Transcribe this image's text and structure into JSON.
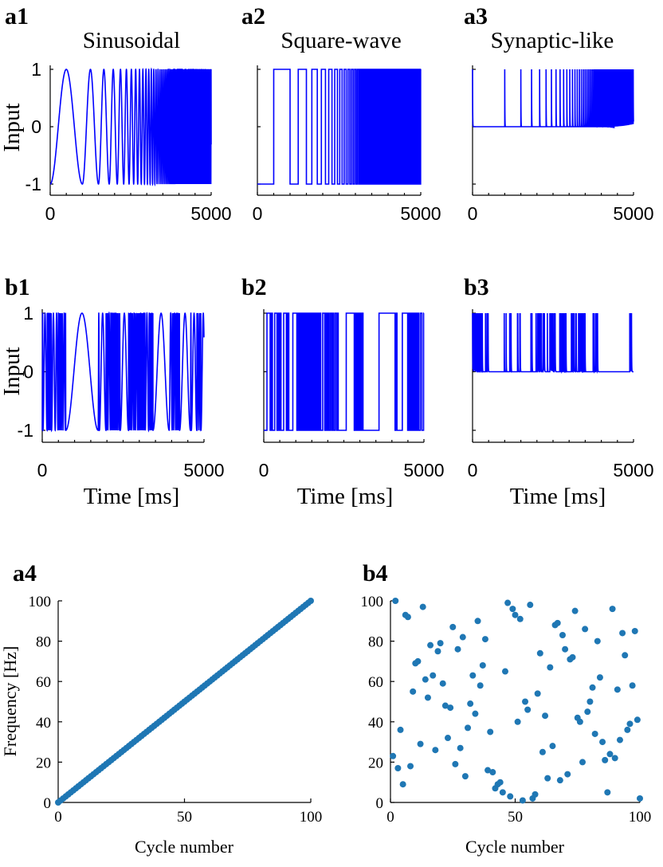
{
  "chart_data": [
    {
      "panel": "a1",
      "type": "line",
      "title": "Sinusoidal",
      "ylabel": "Input",
      "xlabel": "",
      "waveform": "sinusoidal",
      "order": "increasing",
      "xlim": [
        0,
        5000
      ],
      "ylim": [
        -1,
        1
      ],
      "xticks": [
        "0",
        "5000"
      ],
      "yticks": [
        "-1",
        "0",
        "1"
      ],
      "color": "#0000ff"
    },
    {
      "panel": "a2",
      "type": "line",
      "title": "Square-wave",
      "ylabel": "",
      "xlabel": "",
      "waveform": "square",
      "order": "increasing",
      "xlim": [
        0,
        5000
      ],
      "ylim": [
        -1,
        1
      ],
      "xticks": [
        "0",
        "5000"
      ],
      "yticks": [],
      "color": "#0000ff"
    },
    {
      "panel": "a3",
      "type": "line",
      "title": "Synaptic-like",
      "ylabel": "",
      "xlabel": "",
      "waveform": "synaptic",
      "order": "increasing",
      "xlim": [
        0,
        5000
      ],
      "ylim": [
        -1,
        1
      ],
      "xticks": [
        "0",
        "5000"
      ],
      "yticks": [],
      "color": "#0000ff"
    },
    {
      "panel": "b1",
      "type": "line",
      "title": "",
      "ylabel": "Input",
      "xlabel": "Time [ms]",
      "waveform": "sinusoidal",
      "order": "random",
      "xlim": [
        0,
        5000
      ],
      "ylim": [
        -1,
        1
      ],
      "xticks": [
        "0",
        "5000"
      ],
      "yticks": [
        "-1",
        "0",
        "1"
      ],
      "color": "#0000ff"
    },
    {
      "panel": "b2",
      "type": "line",
      "title": "",
      "ylabel": "",
      "xlabel": "Time [ms]",
      "waveform": "square",
      "order": "random",
      "xlim": [
        0,
        5000
      ],
      "ylim": [
        -1,
        1
      ],
      "xticks": [
        "0",
        "5000"
      ],
      "yticks": [],
      "color": "#0000ff"
    },
    {
      "panel": "b3",
      "type": "line",
      "title": "",
      "ylabel": "",
      "xlabel": "Time [ms]",
      "waveform": "synaptic",
      "order": "random",
      "xlim": [
        0,
        5000
      ],
      "ylim": [
        -1,
        1
      ],
      "xticks": [
        "0",
        "5000"
      ],
      "yticks": [],
      "color": "#0000ff"
    },
    {
      "panel": "a4",
      "type": "scatter",
      "title": "",
      "xlabel": "Cycle number",
      "ylabel": "Frequency [Hz]",
      "xlim": [
        0,
        100
      ],
      "ylim": [
        0,
        100
      ],
      "xticks": [
        "0",
        "50",
        "100"
      ],
      "yticks": [
        "0",
        "20",
        "40",
        "60",
        "80",
        "100"
      ],
      "color": "#1f77b4",
      "series": [
        {
          "x": [
            0,
            1,
            2,
            3,
            4,
            5,
            6,
            7,
            8,
            9,
            10,
            11,
            12,
            13,
            14,
            15,
            16,
            17,
            18,
            19,
            20,
            21,
            22,
            23,
            24,
            25,
            26,
            27,
            28,
            29,
            30,
            31,
            32,
            33,
            34,
            35,
            36,
            37,
            38,
            39,
            40,
            41,
            42,
            43,
            44,
            45,
            46,
            47,
            48,
            49,
            50,
            51,
            52,
            53,
            54,
            55,
            56,
            57,
            58,
            59,
            60,
            61,
            62,
            63,
            64,
            65,
            66,
            67,
            68,
            69,
            70,
            71,
            72,
            73,
            74,
            75,
            76,
            77,
            78,
            79,
            80,
            81,
            82,
            83,
            84,
            85,
            86,
            87,
            88,
            89,
            90,
            91,
            92,
            93,
            94,
            95,
            96,
            97,
            98,
            99,
            100
          ],
          "y": [
            0,
            1,
            2,
            3,
            4,
            5,
            6,
            7,
            8,
            9,
            10,
            11,
            12,
            13,
            14,
            15,
            16,
            17,
            18,
            19,
            20,
            21,
            22,
            23,
            24,
            25,
            26,
            27,
            28,
            29,
            30,
            31,
            32,
            33,
            34,
            35,
            36,
            37,
            38,
            39,
            40,
            41,
            42,
            43,
            44,
            45,
            46,
            47,
            48,
            49,
            50,
            51,
            52,
            53,
            54,
            55,
            56,
            57,
            58,
            59,
            60,
            61,
            62,
            63,
            64,
            65,
            66,
            67,
            68,
            69,
            70,
            71,
            72,
            73,
            74,
            75,
            76,
            77,
            78,
            79,
            80,
            81,
            82,
            83,
            84,
            85,
            86,
            87,
            88,
            89,
            90,
            91,
            92,
            93,
            94,
            95,
            96,
            97,
            98,
            99,
            100
          ]
        }
      ]
    },
    {
      "panel": "b4",
      "type": "scatter",
      "title": "",
      "xlabel": "Cycle number",
      "ylabel": "",
      "xlim": [
        0,
        100
      ],
      "ylim": [
        0,
        100
      ],
      "xticks": [
        "0",
        "50",
        "100"
      ],
      "yticks": [
        "0",
        "20",
        "40",
        "60",
        "80",
        "100"
      ],
      "color": "#1f77b4",
      "series": [
        {
          "x": [
            1,
            2,
            3,
            4,
            5,
            6,
            7,
            8,
            9,
            10,
            11,
            12,
            13,
            14,
            15,
            16,
            17,
            18,
            19,
            20,
            21,
            22,
            23,
            24,
            25,
            26,
            27,
            28,
            29,
            30,
            31,
            32,
            33,
            34,
            35,
            36,
            37,
            38,
            39,
            40,
            41,
            42,
            43,
            44,
            45,
            46,
            47,
            48,
            49,
            50,
            51,
            52,
            53,
            54,
            55,
            56,
            57,
            58,
            59,
            60,
            61,
            62,
            63,
            64,
            65,
            66,
            67,
            68,
            69,
            70,
            71,
            72,
            73,
            74,
            75,
            76,
            77,
            78,
            79,
            80,
            81,
            82,
            83,
            84,
            85,
            86,
            87,
            88,
            89,
            90,
            91,
            92,
            93,
            94,
            95,
            96,
            97,
            98,
            99,
            100
          ],
          "y": [
            23,
            100,
            17,
            36,
            9,
            93,
            92,
            18,
            55,
            69,
            70,
            29,
            97,
            61,
            52,
            78,
            63,
            26,
            75,
            79,
            59,
            48,
            32,
            47,
            87,
            19,
            76,
            27,
            82,
            13,
            37,
            49,
            63,
            44,
            90,
            58,
            68,
            81,
            16,
            35,
            15,
            7,
            9,
            10,
            5,
            65,
            99,
            3,
            96,
            93,
            40,
            91,
            1,
            50,
            46,
            98,
            2,
            4,
            54,
            74,
            25,
            43,
            12,
            67,
            28,
            88,
            89,
            11,
            83,
            76,
            14,
            71,
            72,
            95,
            42,
            40,
            20,
            86,
            45,
            50,
            57,
            34,
            80,
            62,
            30,
            21,
            5,
            24,
            96,
            22,
            56,
            31,
            84,
            73,
            36,
            39,
            58,
            85,
            41,
            2
          ]
        }
      ]
    }
  ]
}
